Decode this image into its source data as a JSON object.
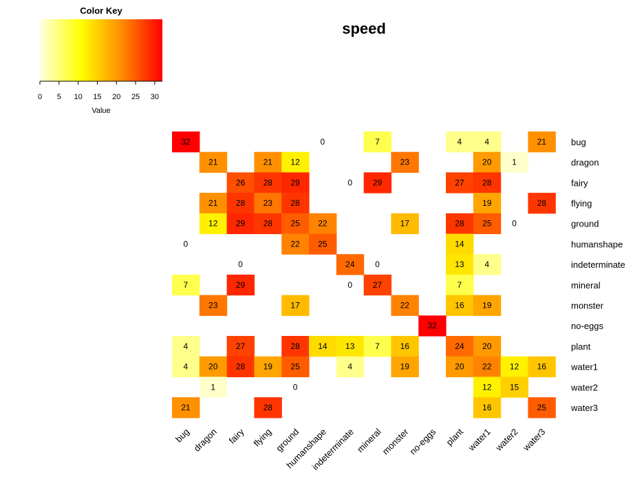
{
  "chart_data": {
    "type": "heatmap",
    "title": "speed",
    "rows": [
      "bug",
      "dragon",
      "fairy",
      "flying",
      "ground",
      "humanshape",
      "indeterminate",
      "mineral",
      "monster",
      "no-eggs",
      "plant",
      "water1",
      "water2",
      "water3"
    ],
    "columns": [
      "bug",
      "dragon",
      "fairy",
      "flying",
      "ground",
      "humanshape",
      "indeterminate",
      "mineral",
      "monster",
      "no-eggs",
      "plant",
      "water1",
      "water2",
      "water3"
    ],
    "values": [
      [
        32,
        null,
        null,
        null,
        null,
        0,
        null,
        7,
        null,
        null,
        4,
        4,
        null,
        21
      ],
      [
        null,
        21,
        null,
        21,
        12,
        null,
        null,
        null,
        23,
        null,
        null,
        20,
        1,
        null
      ],
      [
        null,
        null,
        26,
        28,
        29,
        null,
        0,
        29,
        null,
        null,
        27,
        28,
        null,
        null
      ],
      [
        null,
        21,
        28,
        23,
        28,
        null,
        null,
        null,
        null,
        null,
        null,
        19,
        null,
        28
      ],
      [
        null,
        12,
        29,
        28,
        25,
        22,
        null,
        null,
        17,
        null,
        28,
        25,
        0,
        null
      ],
      [
        0,
        null,
        null,
        null,
        22,
        25,
        null,
        null,
        null,
        null,
        14,
        null,
        null,
        null
      ],
      [
        null,
        null,
        0,
        null,
        null,
        null,
        24,
        0,
        null,
        null,
        13,
        4,
        null,
        null
      ],
      [
        7,
        null,
        29,
        null,
        null,
        null,
        0,
        27,
        null,
        null,
        7,
        null,
        null,
        null
      ],
      [
        null,
        23,
        null,
        null,
        17,
        null,
        null,
        null,
        22,
        null,
        16,
        19,
        null,
        null
      ],
      [
        null,
        null,
        null,
        null,
        null,
        null,
        null,
        null,
        null,
        32,
        null,
        null,
        null,
        null
      ],
      [
        4,
        null,
        27,
        null,
        28,
        14,
        13,
        7,
        16,
        null,
        24,
        20,
        null,
        null
      ],
      [
        4,
        20,
        28,
        19,
        25,
        null,
        4,
        null,
        19,
        null,
        20,
        22,
        12,
        16
      ],
      [
        null,
        1,
        null,
        null,
        0,
        null,
        null,
        null,
        null,
        null,
        null,
        12,
        15,
        null
      ],
      [
        21,
        null,
        null,
        28,
        null,
        null,
        null,
        null,
        null,
        null,
        null,
        16,
        null,
        25
      ]
    ],
    "color_key": {
      "title": "Color Key",
      "xlabel": "Value",
      "range": [
        0,
        32
      ],
      "ticks": [
        0,
        5,
        10,
        15,
        20,
        25,
        30
      ],
      "colors": [
        "#FFFFE0",
        "#FFFF00",
        "#FF8C00",
        "#FF0000"
      ]
    }
  }
}
